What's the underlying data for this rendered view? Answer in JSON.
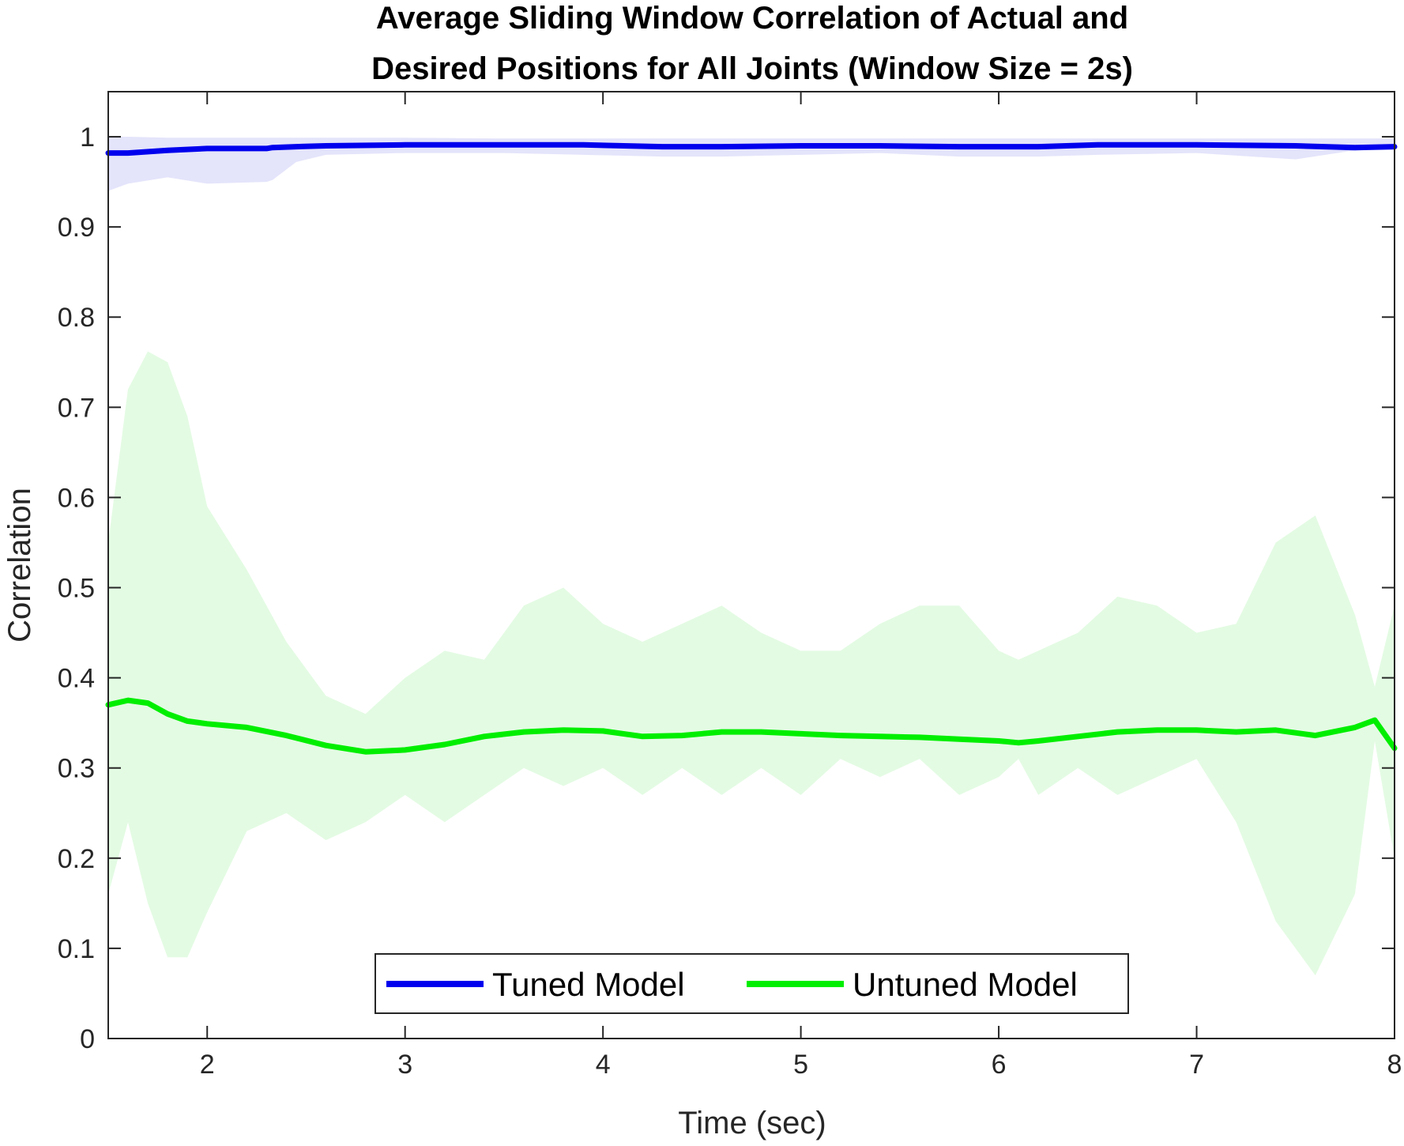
{
  "chart_data": {
    "type": "line",
    "title_lines": [
      "Average Sliding Window Correlation of Actual and",
      "Desired Positions for All Joints (Window Size = 2s)"
    ],
    "xlabel": "Time (sec)",
    "ylabel": "Correlation",
    "xlim": [
      1.5,
      8
    ],
    "ylim": [
      0,
      1.05
    ],
    "xticks": [
      2,
      3,
      4,
      5,
      6,
      7,
      8
    ],
    "yticks": [
      0,
      0.1,
      0.2,
      0.3,
      0.4,
      0.5,
      0.6,
      0.7,
      0.8,
      0.9,
      1
    ],
    "xtick_labels": [
      "2",
      "3",
      "4",
      "5",
      "6",
      "7",
      "8"
    ],
    "ytick_labels": [
      "0",
      "0.1",
      "0.2",
      "0.3",
      "0.4",
      "0.5",
      "0.6",
      "0.7",
      "0.8",
      "0.9",
      "1"
    ],
    "grid": false,
    "legend_position": "bottom-center",
    "series": [
      {
        "name": "Tuned Model",
        "color": "#0000ee",
        "band_color": "#e4e4fb",
        "x": [
          1.5,
          1.6,
          1.8,
          2.0,
          2.3,
          2.33,
          2.45,
          2.6,
          3.0,
          3.5,
          3.9,
          4.3,
          4.6,
          5.0,
          5.4,
          5.8,
          6.2,
          6.5,
          7.0,
          7.5,
          7.8,
          8.0
        ],
        "y": [
          0.982,
          0.982,
          0.985,
          0.987,
          0.987,
          0.988,
          0.989,
          0.99,
          0.991,
          0.991,
          0.991,
          0.989,
          0.989,
          0.99,
          0.99,
          0.989,
          0.989,
          0.991,
          0.991,
          0.99,
          0.988,
          0.989
        ],
        "lower": [
          0.94,
          0.948,
          0.955,
          0.948,
          0.95,
          0.952,
          0.972,
          0.98,
          0.982,
          0.982,
          0.98,
          0.978,
          0.978,
          0.98,
          0.982,
          0.978,
          0.978,
          0.98,
          0.982,
          0.975,
          0.985,
          0.987
        ],
        "upper": [
          1.0,
          1.0,
          0.999,
          0.999,
          0.999,
          0.999,
          0.999,
          0.999,
          0.999,
          0.998,
          0.998,
          0.998,
          0.998,
          0.998,
          0.998,
          0.998,
          0.998,
          0.998,
          0.998,
          0.998,
          0.998,
          0.998
        ]
      },
      {
        "name": "Untuned Model",
        "color": "#00ee00",
        "band_color": "#e3fbe3",
        "x": [
          1.5,
          1.6,
          1.7,
          1.8,
          1.9,
          2.0,
          2.2,
          2.4,
          2.6,
          2.8,
          3.0,
          3.2,
          3.4,
          3.6,
          3.8,
          4.0,
          4.2,
          4.4,
          4.6,
          4.8,
          5.0,
          5.2,
          5.4,
          5.6,
          5.8,
          6.0,
          6.1,
          6.2,
          6.4,
          6.6,
          6.8,
          7.0,
          7.2,
          7.4,
          7.6,
          7.8,
          7.9,
          8.0
        ],
        "y": [
          0.37,
          0.375,
          0.372,
          0.36,
          0.352,
          0.349,
          0.345,
          0.336,
          0.325,
          0.318,
          0.32,
          0.326,
          0.335,
          0.34,
          0.342,
          0.341,
          0.335,
          0.336,
          0.34,
          0.34,
          0.338,
          0.336,
          0.335,
          0.334,
          0.332,
          0.33,
          0.328,
          0.33,
          0.335,
          0.34,
          0.342,
          0.342,
          0.34,
          0.342,
          0.336,
          0.345,
          0.353,
          0.322
        ],
        "lower": [
          0.16,
          0.24,
          0.15,
          0.09,
          0.09,
          0.14,
          0.23,
          0.25,
          0.22,
          0.24,
          0.27,
          0.24,
          0.27,
          0.3,
          0.28,
          0.3,
          0.27,
          0.3,
          0.27,
          0.3,
          0.27,
          0.31,
          0.29,
          0.31,
          0.27,
          0.29,
          0.31,
          0.27,
          0.3,
          0.27,
          0.29,
          0.31,
          0.24,
          0.13,
          0.07,
          0.16,
          0.33,
          0.2
        ],
        "upper": [
          0.55,
          0.72,
          0.762,
          0.75,
          0.69,
          0.59,
          0.52,
          0.44,
          0.38,
          0.36,
          0.4,
          0.43,
          0.42,
          0.48,
          0.5,
          0.46,
          0.44,
          0.46,
          0.48,
          0.45,
          0.43,
          0.43,
          0.46,
          0.48,
          0.48,
          0.43,
          0.42,
          0.43,
          0.45,
          0.49,
          0.48,
          0.45,
          0.46,
          0.55,
          0.58,
          0.47,
          0.39,
          0.48
        ]
      }
    ]
  }
}
